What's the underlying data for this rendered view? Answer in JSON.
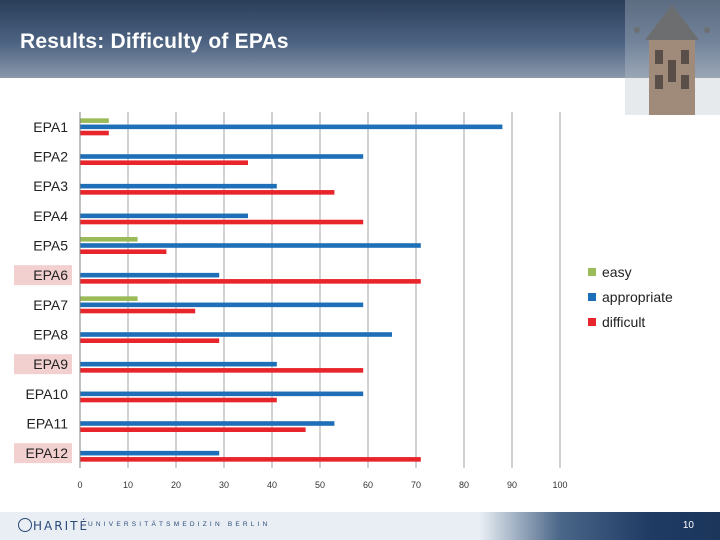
{
  "slide": {
    "title": "Results: Difficulty of EPAs",
    "page_number": "10"
  },
  "footer": {
    "logo_text": "HARITÉ",
    "subtitle": "UNIVERSITÄTSMEDIZIN BERLIN"
  },
  "chart_data": {
    "type": "bar",
    "orientation": "horizontal",
    "categories": [
      "EPA1",
      "EPA2",
      "EPA3",
      "EPA4",
      "EPA5",
      "EPA6",
      "EPA7",
      "EPA8",
      "EPA9",
      "EPA10",
      "EPA11",
      "EPA12"
    ],
    "highlighted_categories": [
      "EPA6",
      "EPA9",
      "EPA12"
    ],
    "highlight_color": "#f2d0d0",
    "series": [
      {
        "name": "easy",
        "color": "#9bbb59",
        "values": [
          6,
          0,
          0,
          0,
          12,
          0,
          12,
          0,
          0,
          0,
          0,
          0
        ]
      },
      {
        "name": "appropriate",
        "color": "#1f6fb8",
        "values": [
          88,
          59,
          41,
          35,
          71,
          29,
          59,
          65,
          41,
          59,
          53,
          29
        ]
      },
      {
        "name": "difficult",
        "color": "#e8252a",
        "values": [
          6,
          35,
          53,
          59,
          18,
          71,
          24,
          29,
          59,
          41,
          47,
          71
        ]
      }
    ],
    "xlim": [
      0,
      100
    ],
    "xticks": [
      0,
      10,
      20,
      30,
      40,
      50,
      60,
      70,
      80,
      90,
      100
    ],
    "grid": true,
    "legend": "right"
  }
}
